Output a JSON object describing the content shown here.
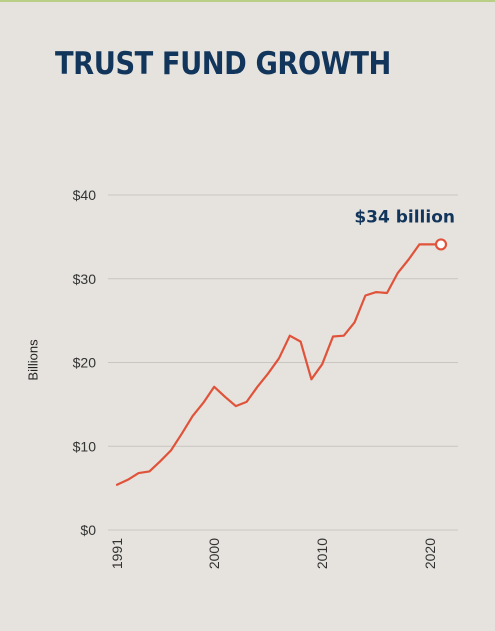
{
  "chart_data": {
    "type": "line",
    "title": "TRUST FUND GROWTH",
    "ylabel": "Billions",
    "xlabel": "",
    "ylim": [
      0,
      40
    ],
    "xlim": [
      1991,
      2021
    ],
    "yticks": [
      0,
      10,
      20,
      30,
      40
    ],
    "ytick_labels": [
      "$0",
      "$10",
      "$20",
      "$30",
      "$40"
    ],
    "xticks": [
      1991,
      2000,
      2010,
      2020
    ],
    "xtick_labels": [
      "1991",
      "2000",
      "2010",
      "2020"
    ],
    "grid": true,
    "line_color": "#e0533a",
    "title_color": "#12355b",
    "series": [
      {
        "x": [
          1991,
          1992,
          1993,
          1994,
          1995,
          1996,
          1997,
          1998,
          1999,
          2000,
          2001,
          2002,
          2003,
          2004,
          2005,
          2006,
          2007,
          2008,
          2009,
          2010,
          2011,
          2012,
          2013,
          2014,
          2015,
          2016,
          2017,
          2018,
          2019,
          2020,
          2021
        ],
        "values": [
          5.4,
          6.0,
          6.8,
          7.0,
          8.2,
          9.5,
          11.5,
          13.6,
          15.2,
          17.1,
          15.9,
          14.8,
          15.3,
          17.1,
          18.7,
          20.5,
          23.2,
          22.5,
          18.0,
          19.8,
          23.1,
          23.2,
          24.8,
          28.0,
          28.4,
          28.3,
          30.7,
          32.3,
          34.1,
          34.1,
          34.1
        ]
      }
    ],
    "annotation": {
      "text": "$34 billion",
      "x": 2021,
      "y": 34.1
    }
  }
}
